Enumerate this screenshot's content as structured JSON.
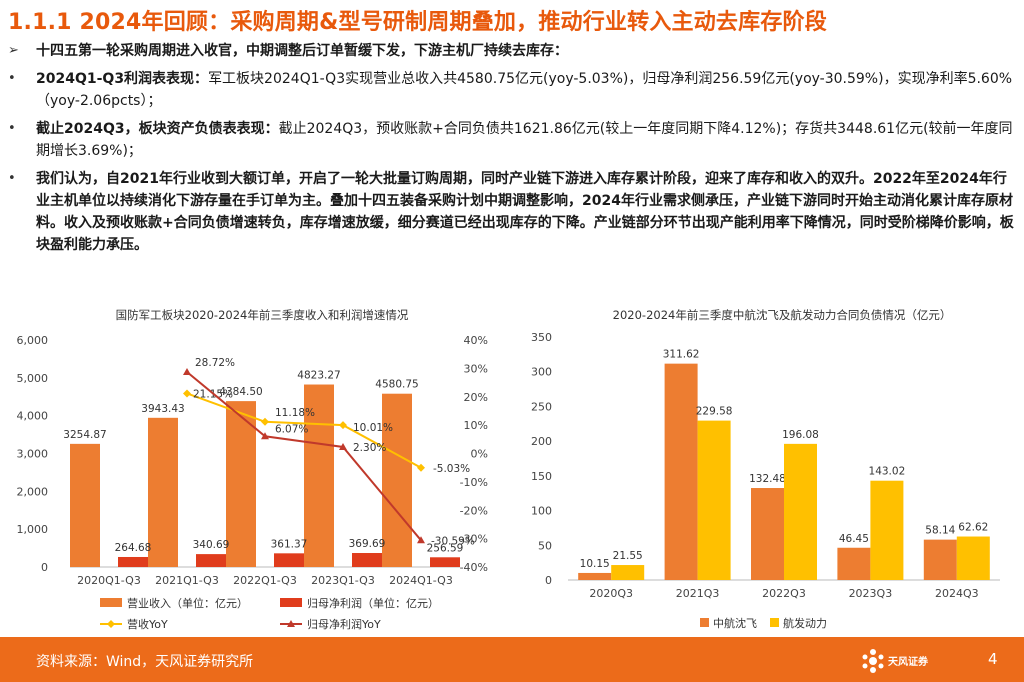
{
  "title": "1.1.1 2024年回顾：采购周期&型号研制周期叠加，推动行业转入主动去库存阶段",
  "bullets": [
    {
      "marker": "➢",
      "bold": "十四五第一轮采购周期进入收官，中期调整后订单暂缓下发，下游主机厂持续去库存：",
      "text": ""
    },
    {
      "marker": "•",
      "bold": "2024Q1-Q3利润表表现：",
      "text": "军工板块2024Q1-Q3实现营业总收入共4580.75亿元(yoy-5.03%)，归母净利润256.59亿元(yoy-30.59%)，实现净利率5.60%（yoy-2.06pcts）；"
    },
    {
      "marker": "•",
      "bold": "截止2024Q3，板块资产负债表表现：",
      "text": "截止2024Q3，预收账款+合同负债共1621.86亿元(较上一年度同期下降4.12%)；存货共3448.61亿元(较前一年度同期增长3.69%)；"
    },
    {
      "marker": "•",
      "bold": "我们认为，自2021年行业收到大额订单，开启了一轮大批量订购周期，同时产业链下游进入库存累计阶段，迎来了库存和收入的双升。2022年至2024年行业主机单位以持续消化下游存量在手订单为主。叠加十四五装备采购计划中期调整影响，2024年行业需求侧承压，产业链下游同时开始主动消化累计库存原材料。收入及预收账款+合同负债增速转负，库存增速放缓，细分赛道已经出现库存的下降。产业链部分环节出现产能利用率下降情况，同时受阶梯降价影响，板块盈利能力承压。",
      "text": ""
    }
  ],
  "chart_data": [
    {
      "type": "bar",
      "title": "国防军工板块2020-2024年前三季度收入和利润增速情况",
      "categories": [
        "2020Q1-Q3",
        "2021Q1-Q3",
        "2022Q1-Q3",
        "2023Q1-Q3",
        "2024Q1-Q3"
      ],
      "series": [
        {
          "name": "营业收入（单位：亿元）",
          "kind": "bar",
          "axis": "left",
          "color": "#ed7d31",
          "values": [
            3254.87,
            3943.43,
            4384.5,
            4823.27,
            4580.75
          ],
          "labels": [
            "3254.87",
            "3943.43",
            "4384.50",
            "4823.27",
            "4580.75"
          ]
        },
        {
          "name": "归母净利润（单位：亿元）",
          "kind": "bar",
          "axis": "left",
          "color": "#e03c1c",
          "values": [
            264.68,
            340.69,
            361.37,
            369.69,
            256.59
          ],
          "labels": [
            "264.68",
            "340.69",
            "361.37",
            "369.69",
            "256.59"
          ]
        },
        {
          "name": "营收YoY",
          "kind": "line",
          "axis": "right",
          "color": "#ffc000",
          "marker": "diamond",
          "values": [
            null,
            21.15,
            11.18,
            10.01,
            -5.03
          ],
          "labels": [
            "",
            "21.15%",
            "11.18%",
            "10.01%",
            "-5.03%"
          ]
        },
        {
          "name": "归母净利润YoY",
          "kind": "line",
          "axis": "right",
          "color": "#c0392b",
          "marker": "triangle",
          "values": [
            null,
            28.72,
            6.07,
            2.3,
            -30.59
          ],
          "labels": [
            "",
            "28.72%",
            "6.07%",
            "2.30%",
            "-30.59%"
          ]
        }
      ],
      "ylim": [
        0,
        6000
      ],
      "yticks": [
        "0",
        "1,000",
        "2,000",
        "3,000",
        "4,000",
        "5,000",
        "6,000"
      ],
      "y2lim": [
        -40,
        40
      ],
      "y2ticks": [
        "-40%",
        "-30%",
        "-20%",
        "-10%",
        "0%",
        "10%",
        "20%",
        "30%",
        "40%"
      ],
      "legend": "bottom"
    },
    {
      "type": "bar",
      "title": "2020-2024年前三季度中航沈飞及航发动力合同负债情况（亿元）",
      "categories": [
        "2020Q3",
        "2021Q3",
        "2022Q3",
        "2023Q3",
        "2024Q3"
      ],
      "series": [
        {
          "name": "中航沈飞",
          "color": "#ed7d31",
          "values": [
            10.15,
            311.62,
            132.48,
            46.45,
            58.14
          ],
          "labels": [
            "10.15",
            "311.62",
            "132.48",
            "46.45",
            "58.14"
          ]
        },
        {
          "name": "航发动力",
          "color": "#ffc000",
          "values": [
            21.55,
            229.58,
            196.08,
            143.02,
            62.62
          ],
          "labels": [
            "21.55",
            "229.58",
            "196.08",
            "143.02",
            "62.62"
          ]
        }
      ],
      "ylim": [
        0,
        350
      ],
      "yticks": [
        "0",
        "50",
        "100",
        "150",
        "200",
        "250",
        "300",
        "350"
      ],
      "legend": "bottom"
    }
  ],
  "footer": {
    "source": "资料来源：Wind，天风证券研究所",
    "logo_text": "天风证券",
    "page": "4"
  },
  "colors": {
    "accent": "#e8590c",
    "footer": "#ec6b1a"
  }
}
